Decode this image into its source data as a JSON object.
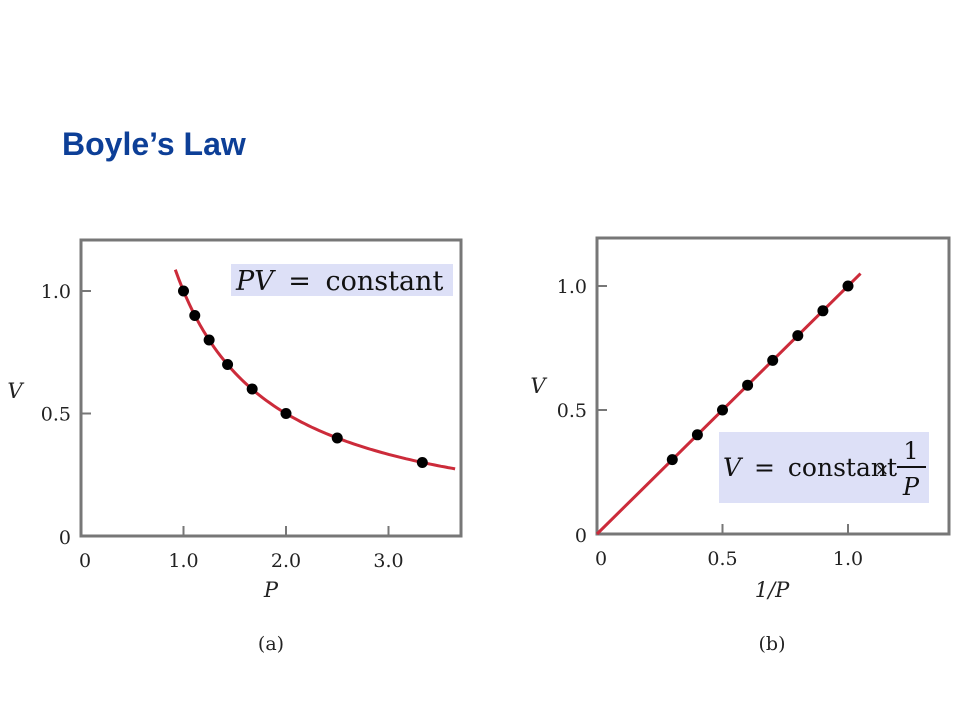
{
  "page": {
    "title": "Boyle’s Law"
  },
  "colors": {
    "title": "#0d3f97",
    "curve": "#cc2b3a",
    "formula_box": "#dde0f7",
    "point": "#000000",
    "frame": "#777777"
  },
  "chart_data": [
    {
      "type": "line",
      "panel_label": "(a)",
      "xlabel": "P",
      "ylabel": "V",
      "xlim": [
        0,
        3.7
      ],
      "ylim": [
        0,
        1.2
      ],
      "x_ticks": [
        0,
        1.0,
        2.0,
        3.0
      ],
      "x_tick_labels": [
        "0",
        "1.0",
        "2.0",
        "3.0"
      ],
      "y_ticks": [
        0,
        0.5,
        1.0
      ],
      "y_tick_labels": [
        "0",
        "0.5",
        "1.0"
      ],
      "curve": {
        "equation": "V = 1 / P",
        "x_range": [
          0.92,
          3.65
        ]
      },
      "points": [
        {
          "x": 1.0,
          "y": 1.0
        },
        {
          "x": 1.11,
          "y": 0.9
        },
        {
          "x": 1.25,
          "y": 0.8
        },
        {
          "x": 1.43,
          "y": 0.7
        },
        {
          "x": 1.67,
          "y": 0.6
        },
        {
          "x": 2.0,
          "y": 0.5
        },
        {
          "x": 2.5,
          "y": 0.4
        },
        {
          "x": 3.33,
          "y": 0.3
        }
      ],
      "annotation": {
        "lhs": "PV",
        "eq": "=",
        "rhs": "constant"
      }
    },
    {
      "type": "line",
      "panel_label": "(b)",
      "xlabel": "1/P",
      "ylabel": "V",
      "xlim": [
        0,
        1.4
      ],
      "ylim": [
        0,
        1.2
      ],
      "x_ticks": [
        0,
        0.5,
        1.0
      ],
      "x_tick_labels": [
        "0",
        "0.5",
        "1.0"
      ],
      "y_ticks": [
        0,
        0.5,
        1.0
      ],
      "y_tick_labels": [
        "0",
        "0.5",
        "1.0"
      ],
      "curve": {
        "equation": "V = 1/P",
        "x_range": [
          0,
          1.05
        ]
      },
      "points": [
        {
          "x": 0.3,
          "y": 0.3
        },
        {
          "x": 0.4,
          "y": 0.4
        },
        {
          "x": 0.5,
          "y": 0.5
        },
        {
          "x": 0.6,
          "y": 0.6
        },
        {
          "x": 0.7,
          "y": 0.7
        },
        {
          "x": 0.8,
          "y": 0.8
        },
        {
          "x": 0.9,
          "y": 0.9
        },
        {
          "x": 1.0,
          "y": 1.0
        }
      ],
      "annotation": {
        "lhs": "V",
        "eq": "=",
        "rhs": "constant",
        "times": "×",
        "frac_num": "1",
        "frac_den": "P"
      }
    }
  ]
}
